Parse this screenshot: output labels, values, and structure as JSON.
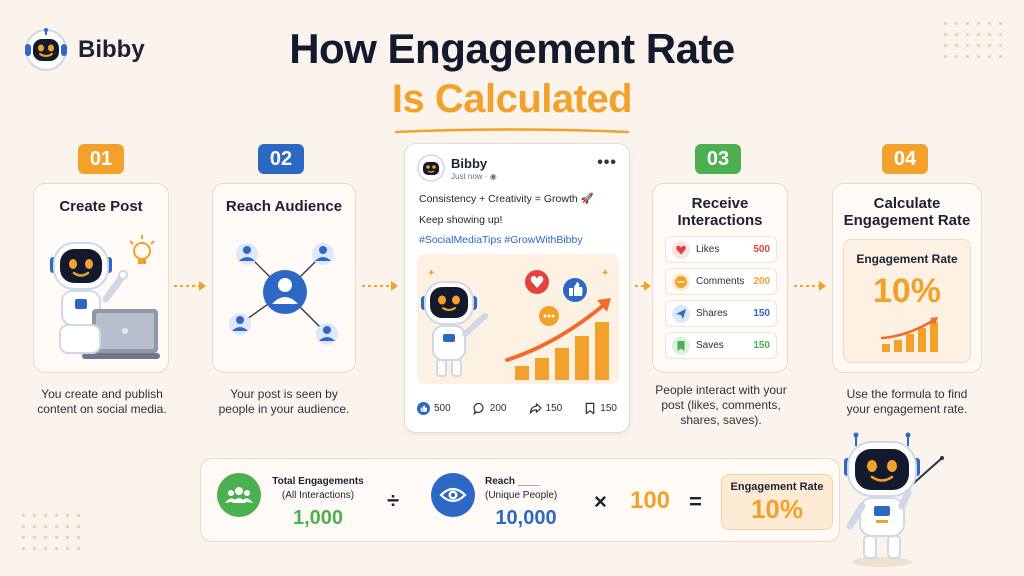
{
  "brand": {
    "name": "Bibby"
  },
  "title": {
    "line1": "How Engagement Rate",
    "line2": "Is Calculated"
  },
  "colors": {
    "orange": "#f2a22a",
    "blue": "#2d68c4",
    "green": "#4caf50",
    "navy": "#141a2e"
  },
  "steps": [
    {
      "number": "01",
      "title": "Create Post",
      "caption_1": "You create and publish",
      "caption_2": "content on social media."
    },
    {
      "number": "02",
      "title": "Reach Audience",
      "caption_1": "Your post is seen by",
      "caption_2": "people in your audience."
    },
    {
      "number": "03",
      "title_1": "Receive",
      "title_2": "Interactions",
      "caption_1": "People interact with your",
      "caption_2": "post (likes, comments,",
      "caption_3": "shares, saves)."
    },
    {
      "number": "04",
      "title_1": "Calculate",
      "title_2": "Engagement Rate",
      "inner_label": "Engagement Rate",
      "inner_value": "10%",
      "caption_1": "Use the formula to find",
      "caption_2": "your engagement rate."
    }
  ],
  "post": {
    "author": "Bibby",
    "time": "Just now ·",
    "line1": "Consistency + Creativity = Growth 🚀",
    "line2": "Keep showing up!",
    "tags": "#SocialMediaTips #GrowWithBibby",
    "likes": "500",
    "comments": "200",
    "shares": "150",
    "saves": "150"
  },
  "interactions": [
    {
      "label": "Likes",
      "value": "500",
      "icon": "heart-icon",
      "color": "#e0443e"
    },
    {
      "label": "Comments",
      "value": "200",
      "icon": "comment-icon",
      "color": "#f2a22a"
    },
    {
      "label": "Shares",
      "value": "150",
      "icon": "share-icon",
      "color": "#2d68c4"
    },
    {
      "label": "Saves",
      "value": "150",
      "icon": "bookmark-icon",
      "color": "#4caf50"
    }
  ],
  "formula": {
    "engagements_label_1": "Total Engagements",
    "engagements_label_2": "(All Interactions)",
    "engagements_value": "1,000",
    "divide": "÷",
    "reach_label_1": "Reach ____",
    "reach_label_2": "(Unique People)",
    "reach_value": "10,000",
    "times": "×",
    "multiplier": "100",
    "equals": "=",
    "result_label": "Engagement Rate",
    "result_value": "10%"
  }
}
